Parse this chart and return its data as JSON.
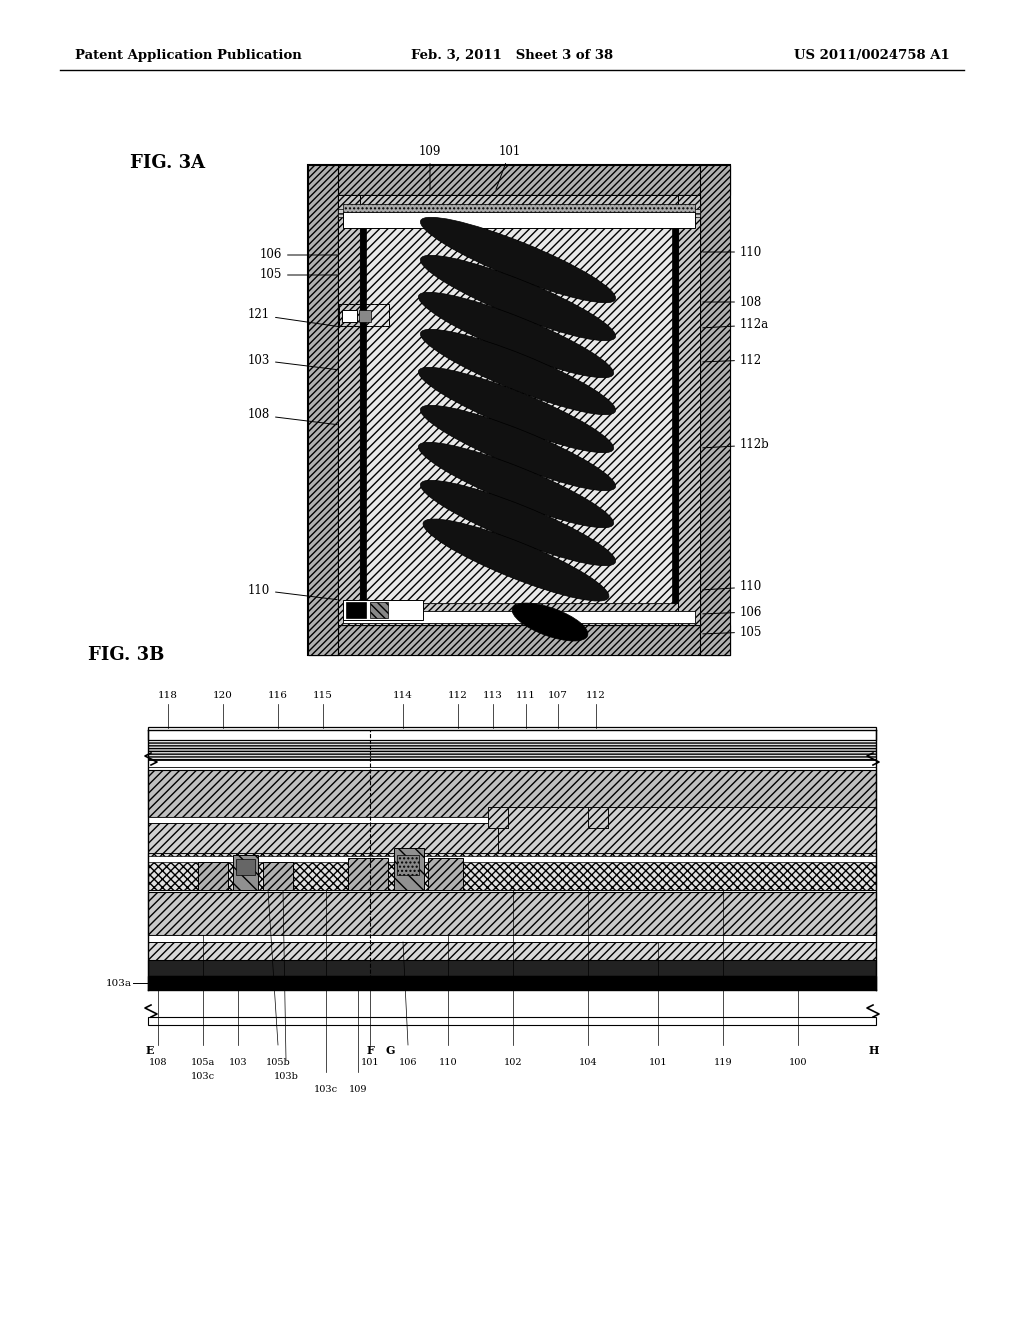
{
  "page_header": {
    "left": "Patent Application Publication",
    "center": "Feb. 3, 2011   Sheet 3 of 38",
    "right": "US 2011/0024758 A1"
  },
  "bg_color": "#ffffff"
}
